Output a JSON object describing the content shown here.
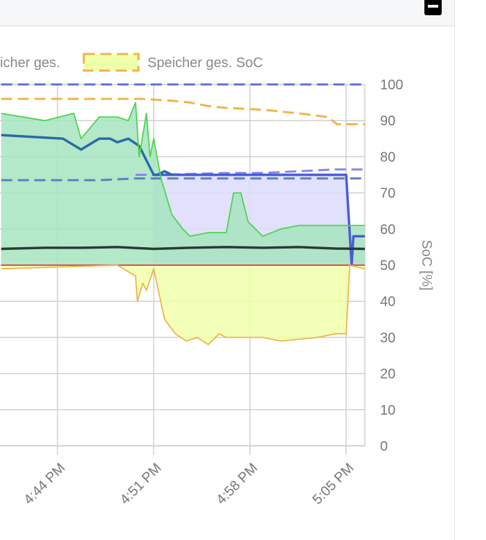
{
  "header": {
    "collapse_icon": "minus-square-icon"
  },
  "legend": [
    {
      "label": "icher ges.",
      "color": "#888888"
    },
    {
      "label": "Speicher ges. SoC",
      "border": "#f0b34a",
      "fill": "#eeffaa"
    }
  ],
  "chart_data": {
    "type": "line",
    "x_ticks": [
      "4:44 PM",
      "4:51 PM",
      "4:58 PM",
      "5:05 PM"
    ],
    "y_axis": {
      "label": "SoC [%]",
      "min": 0,
      "max": 100,
      "ticks": [
        0,
        10,
        20,
        30,
        40,
        50,
        60,
        70,
        80,
        90,
        100
      ],
      "position": "right"
    },
    "grid": true,
    "x_range_minutes": [
      -4.2,
      1.3
    ],
    "series": [
      {
        "name": "Speicher ges. SoC",
        "style": "dashed",
        "color": "#f0b34a",
        "x": [
          -4.2,
          -2,
          -1,
          -0.3,
          0.5,
          1,
          1.5,
          2,
          3,
          4,
          4.8,
          5.05,
          6
        ],
        "y": [
          96,
          96,
          96,
          96,
          95.5,
          95,
          94,
          93.5,
          93,
          92,
          91,
          89,
          89
        ]
      },
      {
        "style": "dashed",
        "color": "#5b6fd6",
        "x": [
          -4.2,
          6
        ],
        "y": [
          100,
          100
        ]
      },
      {
        "style": "dashed",
        "color": "#5a7fc5",
        "x": [
          -4.2,
          -1.5,
          -0.5,
          6
        ],
        "y": [
          73.5,
          73.5,
          74,
          74
        ]
      },
      {
        "style": "dashed",
        "color": "#8585ee",
        "x": [
          -0.5,
          0,
          2,
          3,
          4,
          5,
          6
        ],
        "y": [
          75,
          75,
          75.5,
          75.5,
          76,
          76.5,
          76.5
        ]
      },
      {
        "style": "solid",
        "color": "#4c5bd4",
        "fill": "#dcdcfa",
        "x": [
          0,
          3,
          5.3,
          5.45,
          5.5,
          5.6,
          6
        ],
        "y": [
          75,
          75,
          75,
          50,
          58,
          58,
          58
        ]
      },
      {
        "style": "solid",
        "color": "#2a6aa8",
        "x": [
          -4.2,
          -2.5,
          -2,
          -1.5,
          -1.2,
          -1,
          -0.7,
          -0.4,
          -0.2,
          0,
          0.1,
          0.3,
          0.5
        ],
        "y": [
          86,
          85,
          82,
          85,
          85,
          84,
          85,
          83,
          79,
          75,
          75,
          76,
          75
        ]
      },
      {
        "style": "solid",
        "color": "#4cd44c",
        "fill": "#a6e4c0",
        "x": [
          -4.2,
          -3,
          -2.2,
          -2,
          -1.5,
          -1,
          -0.7,
          -0.5,
          -0.4,
          -0.3,
          -0.2,
          -0.1,
          0,
          0.2,
          0.5,
          0.8,
          1,
          1.5,
          2,
          2.2,
          2.4,
          2.6,
          3,
          3.5,
          4,
          4.5,
          5,
          5.3,
          6
        ],
        "y": [
          92,
          90,
          92,
          85,
          91,
          91,
          90,
          95,
          80,
          86,
          92,
          80,
          85,
          74,
          64,
          60,
          58,
          59,
          59,
          70,
          70,
          62,
          58,
          60,
          61,
          61,
          61,
          61,
          61
        ]
      },
      {
        "style": "solid",
        "color": "#2b3a34",
        "x": [
          -4.2,
          -3,
          -2,
          -1,
          0,
          1,
          2,
          3,
          4,
          5,
          6
        ],
        "y": [
          54.5,
          54.8,
          54.8,
          55,
          54.5,
          54.8,
          55,
          54.8,
          55,
          54.6,
          54.5
        ]
      },
      {
        "style": "solid",
        "color": "#e03b3b",
        "x": [
          -4.2,
          6
        ],
        "y": [
          50,
          50
        ]
      },
      {
        "name": "Speicher ges.",
        "style": "solid",
        "color": "#f0b34a",
        "fill": "#eeffaa",
        "x": [
          -4.2,
          -1,
          -0.5,
          -0.45,
          -0.3,
          -0.2,
          0,
          0.3,
          0.6,
          0.9,
          1.2,
          1.5,
          1.8,
          2,
          2.5,
          3,
          3.5,
          4,
          4.5,
          5,
          5.3,
          5.4,
          6
        ],
        "y": [
          49,
          50,
          47,
          40,
          45,
          43,
          49,
          35,
          31,
          29,
          30,
          28,
          31,
          30,
          30,
          30,
          29,
          29.5,
          30,
          31,
          31,
          50,
          49
        ]
      }
    ]
  }
}
